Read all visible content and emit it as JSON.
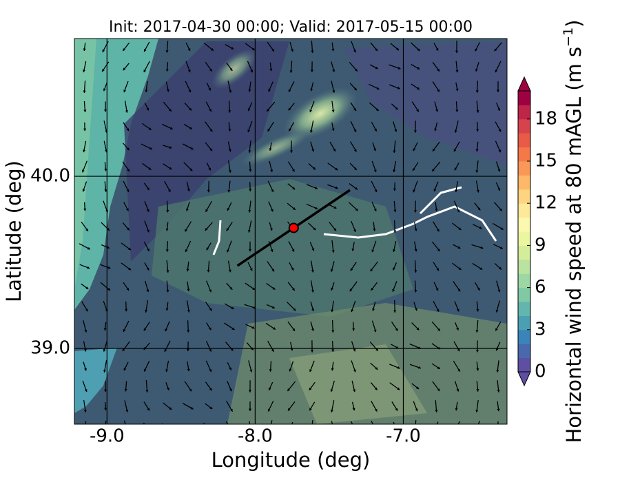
{
  "chart_data": {
    "type": "map",
    "title": "Init: 2017-04-30 00:00; Valid: 2017-05-15 00:00",
    "xlabel": "Longitude (deg)",
    "ylabel": "Latitude (deg)",
    "xlim": [
      -9.22,
      -6.3
    ],
    "ylim": [
      38.56,
      40.8
    ],
    "xticks": [
      {
        "value": -9,
        "label": "-9.0"
      },
      {
        "value": -8,
        "label": "-8.0"
      },
      {
        "value": -7,
        "label": "-7.0"
      }
    ],
    "yticks": [
      {
        "value": 39,
        "label": "39.0"
      },
      {
        "value": 40,
        "label": "40.0"
      }
    ],
    "grid": true,
    "point": {
      "lon": -7.74,
      "lat": 39.7,
      "color": "#ff0000"
    },
    "section": {
      "lon": [
        -8.12,
        -7.36
      ],
      "lat": [
        39.48,
        39.92
      ],
      "color": "#000000"
    },
    "colorbar": {
      "label": "Horizontal wind speed at 80 mAGL (m s",
      "label_sup": "−1",
      "label_end": ")",
      "clim": [
        0,
        20
      ],
      "ticks": [
        0,
        3,
        6,
        9,
        12,
        15,
        18
      ],
      "extend": "both",
      "colors": [
        "#5e4fa2",
        "#4a68ad",
        "#3b84b9",
        "#4b9fb3",
        "#63b6ad",
        "#80c9a4",
        "#9dd7a4",
        "#bae3a0",
        "#d4ed9b",
        "#ebf7a0",
        "#fbf8b0",
        "#fee99a",
        "#fed480",
        "#fdb869",
        "#fa9857",
        "#f57948",
        "#e85b47",
        "#d6434d",
        "#bd2549",
        "#9e0142"
      ]
    }
  }
}
